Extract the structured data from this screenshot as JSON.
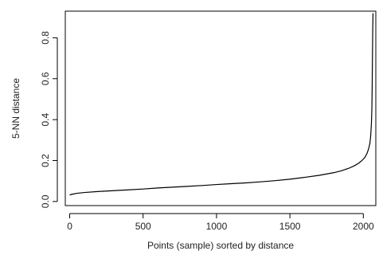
{
  "chart_data": {
    "type": "line",
    "title": "",
    "xlabel": "Points (sample) sorted by distance",
    "ylabel": "5-NN distance",
    "xlim": [
      -30,
      2085
    ],
    "ylim": [
      -0.02,
      0.93
    ],
    "xticks": [
      0,
      500,
      1000,
      1500,
      2000
    ],
    "xtick_labels": [
      "0",
      "500",
      "1000",
      "1500",
      "2000"
    ],
    "yticks": [
      0.0,
      0.2,
      0.4,
      0.6,
      0.8
    ],
    "ytick_labels": [
      "0.0",
      "0.2",
      "0.4",
      "0.6",
      "0.8"
    ],
    "grid": false,
    "legend": "none",
    "line_color": "#000000",
    "series": [
      {
        "x": [
          0,
          20,
          50,
          100,
          200,
          300,
          400,
          500,
          600,
          700,
          800,
          900,
          1000,
          1100,
          1200,
          1300,
          1400,
          1500,
          1600,
          1700,
          1800,
          1850,
          1900,
          1940,
          1970,
          1990,
          2010,
          2025,
          2035,
          2045,
          2050,
          2055,
          2058,
          2060,
          2062,
          2064,
          2066
        ],
        "y": [
          0.032,
          0.036,
          0.04,
          0.044,
          0.049,
          0.053,
          0.057,
          0.061,
          0.066,
          0.07,
          0.074,
          0.078,
          0.083,
          0.087,
          0.091,
          0.096,
          0.102,
          0.109,
          0.118,
          0.128,
          0.141,
          0.15,
          0.162,
          0.175,
          0.188,
          0.2,
          0.215,
          0.235,
          0.255,
          0.285,
          0.32,
          0.38,
          0.45,
          0.55,
          0.7,
          0.84,
          0.92
        ]
      }
    ]
  }
}
